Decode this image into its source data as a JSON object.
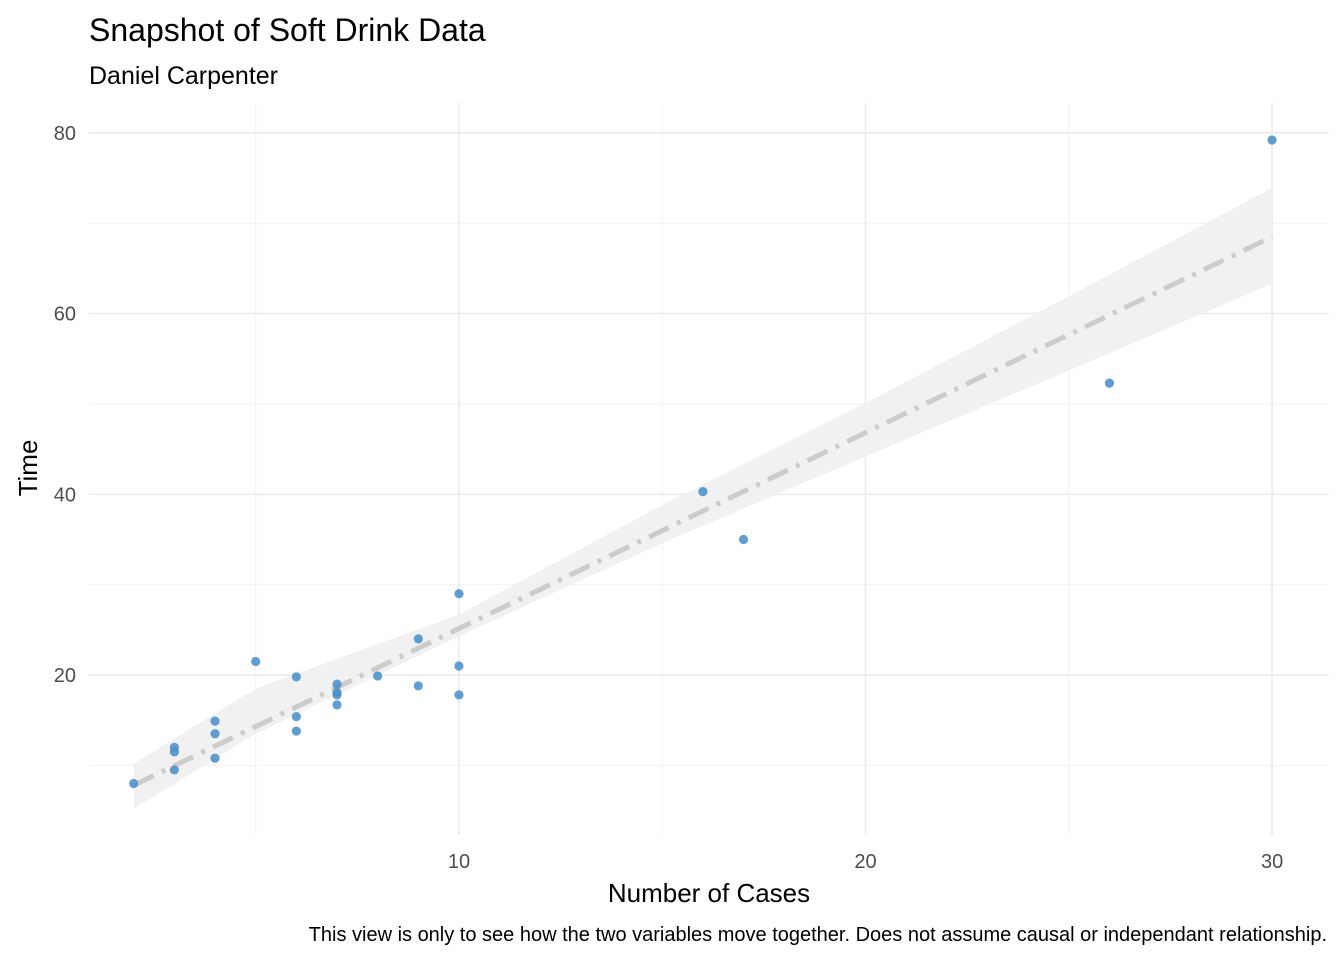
{
  "chart_data": {
    "type": "scatter",
    "title": "Snapshot of Soft Drink Data",
    "subtitle": "Daniel Carpenter",
    "xlabel": "Number of Cases",
    "ylabel": "Time",
    "caption": "This view is only to see how the two variables move together. Does not assume causal or independant relationship.",
    "xlim": [
      0.9,
      31.4
    ],
    "ylim": [
      2.3,
      83.3
    ],
    "xticks": [
      10,
      20,
      30
    ],
    "yticks": [
      20,
      40,
      60,
      80
    ],
    "grid": true,
    "legend": "none",
    "point_color": "#4a8fc9",
    "trend_color": "#cccccc",
    "band_color": "#eeeeee",
    "points": [
      {
        "x": 2,
        "y": 8.0
      },
      {
        "x": 3,
        "y": 9.5
      },
      {
        "x": 3,
        "y": 11.5
      },
      {
        "x": 3,
        "y": 12.0
      },
      {
        "x": 4,
        "y": 10.8
      },
      {
        "x": 4,
        "y": 13.5
      },
      {
        "x": 4,
        "y": 14.9
      },
      {
        "x": 5,
        "y": 21.5
      },
      {
        "x": 6,
        "y": 13.8
      },
      {
        "x": 6,
        "y": 15.4
      },
      {
        "x": 6,
        "y": 19.8
      },
      {
        "x": 7,
        "y": 16.7
      },
      {
        "x": 7,
        "y": 17.8
      },
      {
        "x": 7,
        "y": 18.1
      },
      {
        "x": 7,
        "y": 19.0
      },
      {
        "x": 8,
        "y": 19.9
      },
      {
        "x": 9,
        "y": 18.8
      },
      {
        "x": 9,
        "y": 24.0
      },
      {
        "x": 10,
        "y": 17.8
      },
      {
        "x": 10,
        "y": 21.0
      },
      {
        "x": 10,
        "y": 29.0
      },
      {
        "x": 16,
        "y": 40.3
      },
      {
        "x": 17,
        "y": 35.0
      },
      {
        "x": 26,
        "y": 52.3
      },
      {
        "x": 30,
        "y": 79.2
      }
    ],
    "trend_line": {
      "x": [
        2,
        30
      ],
      "y": [
        7.8,
        68.5
      ]
    },
    "confidence_band": {
      "x": [
        2,
        5,
        10,
        15,
        20,
        25,
        30
      ],
      "lower": [
        5.2,
        13.5,
        24.3,
        34.6,
        44.2,
        53.7,
        63.3
      ],
      "upper": [
        10.2,
        18.5,
        26.7,
        38.8,
        50.1,
        61.9,
        73.9
      ]
    }
  }
}
